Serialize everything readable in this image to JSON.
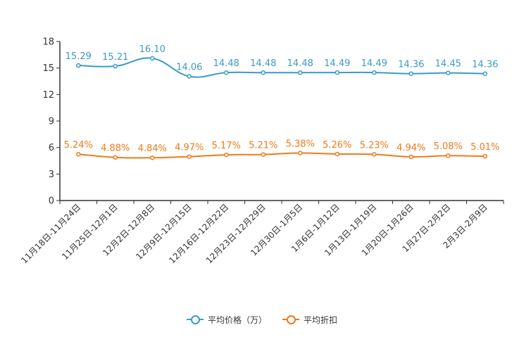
{
  "chart_data": {
    "type": "line",
    "categories": [
      "11月18日-11月24日",
      "11月25日-12月1日",
      "12月2日-12月8日",
      "12月9日-12月15日",
      "12月16日-12月22日",
      "12月23日-12月29日",
      "12月30日-1月5日",
      "1月6日-1月12日",
      "1月13日-1月19日",
      "1月20日-1月26日",
      "1月27日-2月2日",
      "2月3日-2月9日"
    ],
    "yticks": [
      "0",
      "3",
      "6",
      "9",
      "12",
      "15",
      "18"
    ],
    "ylim": [
      0,
      18
    ],
    "series": [
      {
        "name": "平均价格（万）",
        "color": "#3a9bc8",
        "values": [
          15.29,
          15.21,
          16.1,
          14.06,
          14.48,
          14.48,
          14.48,
          14.49,
          14.49,
          14.36,
          14.45,
          14.36
        ],
        "labels": [
          "15.29",
          "15.21",
          "16.10",
          "14.06",
          "14.48",
          "14.48",
          "14.48",
          "14.49",
          "14.49",
          "14.36",
          "14.45",
          "14.36"
        ]
      },
      {
        "name": "平均折扣",
        "color": "#f07a1a",
        "values": [
          5.24,
          4.88,
          4.84,
          4.97,
          5.17,
          5.21,
          5.38,
          5.26,
          5.23,
          4.94,
          5.08,
          5.01
        ],
        "labels": [
          "5.24%",
          "4.88%",
          "4.84%",
          "4.97%",
          "5.17%",
          "5.21%",
          "5.38%",
          "5.26%",
          "5.23%",
          "4.94%",
          "5.08%",
          "5.01%"
        ]
      }
    ],
    "legend": [
      {
        "label": "平均价格（万）",
        "color": "#3a9bc8"
      },
      {
        "label": "平均折扣",
        "color": "#f07a1a"
      }
    ]
  }
}
